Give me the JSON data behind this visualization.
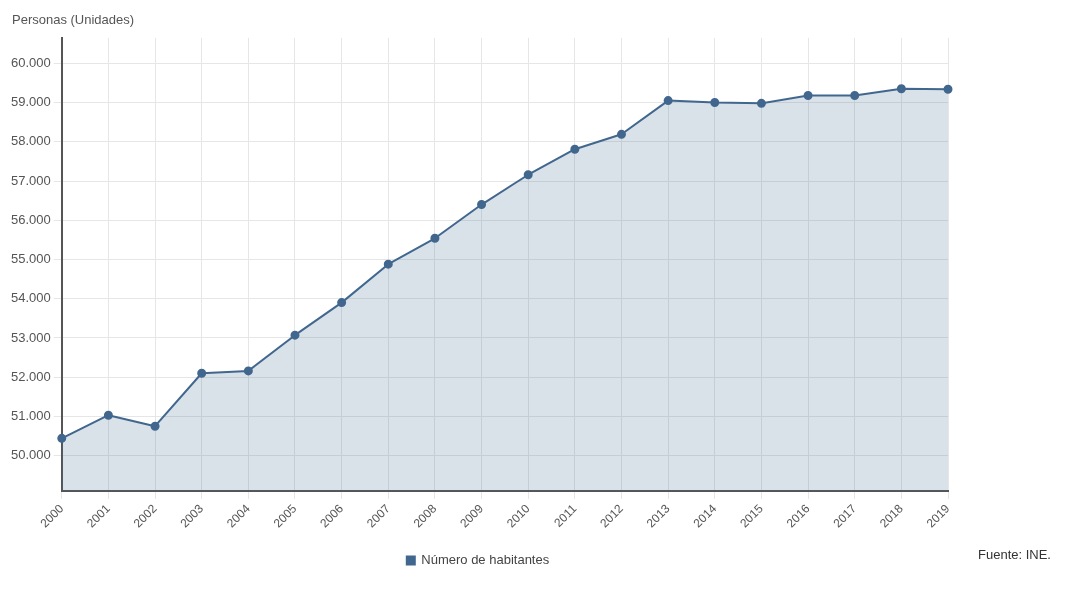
{
  "chart_data": {
    "type": "area",
    "ylabel": "Personas (Unidades)",
    "categories": [
      "2000",
      "2001",
      "2002",
      "2003",
      "2004",
      "2005",
      "2006",
      "2007",
      "2008",
      "2009",
      "2010",
      "2011",
      "2012",
      "2013",
      "2014",
      "2015",
      "2016",
      "2017",
      "2018",
      "2019"
    ],
    "series": [
      {
        "name": "Número de habitantes",
        "color": "#41678f",
        "values": [
          50440,
          51030,
          50750,
          52100,
          52160,
          53070,
          53900,
          54880,
          55540,
          56400,
          57160,
          57810,
          58190,
          59050,
          59000,
          58980,
          59180,
          59180,
          59350,
          59340
        ]
      }
    ],
    "ylim": [
      49100,
      60650
    ],
    "yticks": [
      {
        "value": 50000,
        "label": "50.000"
      },
      {
        "value": 51000,
        "label": "51.000"
      },
      {
        "value": 52000,
        "label": "52.000"
      },
      {
        "value": 53000,
        "label": "53.000"
      },
      {
        "value": 54000,
        "label": "54.000"
      },
      {
        "value": 55000,
        "label": "55.000"
      },
      {
        "value": 56000,
        "label": "56.000"
      },
      {
        "value": 57000,
        "label": "57.000"
      },
      {
        "value": 58000,
        "label": "58.000"
      },
      {
        "value": 59000,
        "label": "59.000"
      },
      {
        "value": 60000,
        "label": "60.000"
      }
    ],
    "grid": true,
    "legend": "bottom",
    "marker": "circle",
    "line_style": "solid",
    "annotations": [
      "Fuente: INE."
    ]
  }
}
